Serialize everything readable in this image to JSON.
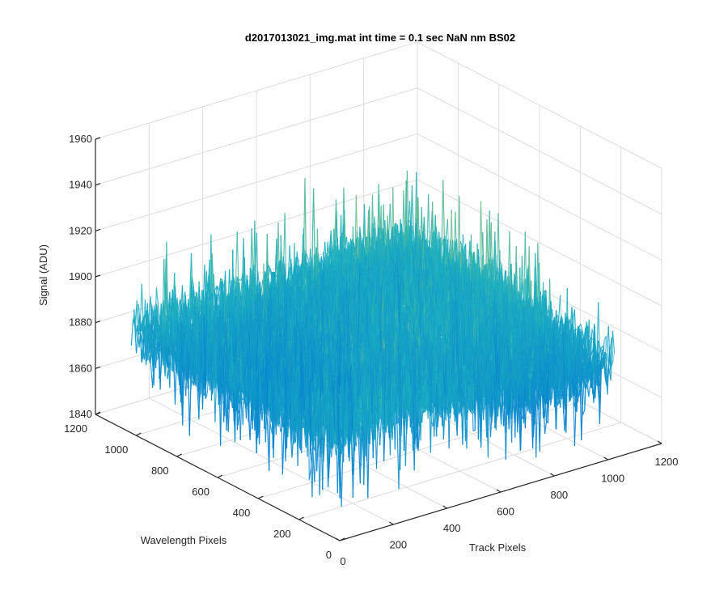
{
  "chart_data": {
    "type": "surface",
    "title": "d2017013021_img.mat int time = 0.1 sec  NaN nm BS02",
    "xlabel": "Track Pixels",
    "ylabel": "Wavelength Pixels",
    "zlabel": "Signal (ADU)",
    "xlim": [
      0,
      1200
    ],
    "ylim": [
      0,
      1200
    ],
    "zlim": [
      1840,
      1960
    ],
    "x_ticks": [
      "0",
      "200",
      "400",
      "600",
      "800",
      "1000",
      "1200"
    ],
    "y_ticks": [
      "0",
      "200",
      "400",
      "600",
      "800",
      "1000",
      "1200"
    ],
    "z_ticks": [
      "1840",
      "1860",
      "1880",
      "1900",
      "1920",
      "1940",
      "1960"
    ],
    "grid": true,
    "colormap": "parula",
    "surface_extent": {
      "x": [
        0,
        1024
      ],
      "y": [
        0,
        1024
      ]
    },
    "signal": {
      "base": 1885,
      "noise_amplitude": 18,
      "peak": 1957,
      "min": 1848
    },
    "colors": {
      "axis": "#262626",
      "grid": "#dcdcdc",
      "low": "#0072d6",
      "mid": "#1fb4c0",
      "high": "#e8c83c"
    }
  }
}
